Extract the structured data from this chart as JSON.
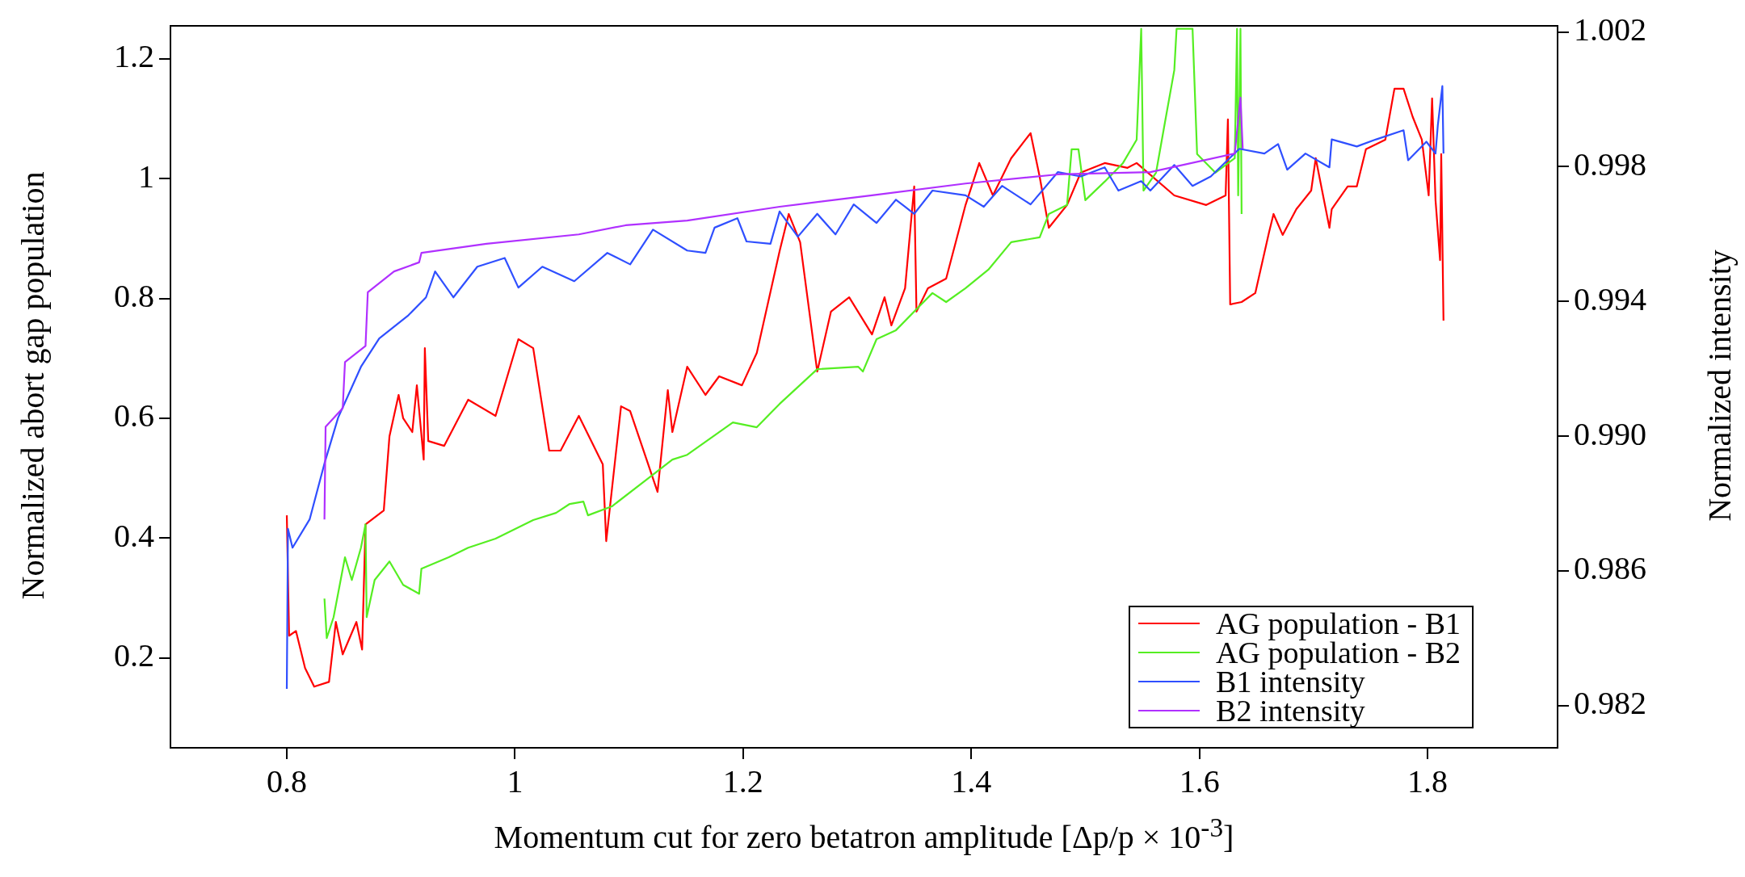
{
  "chart_data": {
    "type": "line",
    "xlabel": "Momentum cut for zero betatron amplitude [Δp/p × 10$^{-3}$]",
    "ylabel": "Normalized abort gap population",
    "y2label": "Normalized intensity",
    "xlim": [
      0.698,
      1.914
    ],
    "xticks": [
      0.8,
      1,
      1.2,
      1.4,
      1.6,
      1.8
    ],
    "ylim": [
      0.05,
      1.255
    ],
    "yticks": [
      0.2,
      0.4,
      0.6,
      0.8,
      1,
      1.2
    ],
    "y2lim": [
      0.98075,
      1.00218
    ],
    "y2ticks": [
      {
        "value": 0.982,
        "label": "0.982"
      },
      {
        "value": 0.986,
        "label": "0.986"
      },
      {
        "value": 0.99,
        "label": "0.990"
      },
      {
        "value": 0.994,
        "label": "0.994"
      },
      {
        "value": 0.998,
        "label": "0.998"
      },
      {
        "value": 1.002,
        "label": "1.002"
      }
    ],
    "legend": "bottom right",
    "series": [
      {
        "name": "AG population - B1",
        "color": "#ff0000",
        "x": [
          0.8,
          0.802,
          0.808,
          0.816,
          0.824,
          0.837,
          0.843,
          0.849,
          0.861,
          0.866,
          0.869,
          0.885,
          0.89,
          0.898,
          0.902,
          0.91,
          0.914,
          0.92,
          0.921,
          0.924,
          0.938,
          0.959,
          0.983,
          1.003,
          1.016,
          1.03,
          1.04,
          1.056,
          1.077,
          1.08,
          1.093,
          1.101,
          1.125,
          1.134,
          1.138,
          1.151,
          1.167,
          1.179,
          1.199,
          1.212,
          1.232,
          1.24,
          1.25,
          1.265,
          1.277,
          1.293,
          1.313,
          1.324,
          1.33,
          1.342,
          1.35,
          1.352,
          1.362,
          1.378,
          1.395,
          1.407,
          1.419,
          1.435,
          1.452,
          1.46,
          1.468,
          1.484,
          1.496,
          1.517,
          1.537,
          1.545,
          1.578,
          1.606,
          1.623,
          1.625,
          1.627,
          1.637,
          1.649,
          1.661,
          1.665,
          1.673,
          1.685,
          1.698,
          1.702,
          1.714,
          1.716,
          1.73,
          1.738,
          1.746,
          1.763,
          1.771,
          1.779,
          1.787,
          1.795,
          1.801,
          1.804,
          1.807,
          1.811,
          1.812,
          1.814
        ],
        "values": [
          0.438,
          0.237,
          0.245,
          0.183,
          0.152,
          0.16,
          0.26,
          0.206,
          0.26,
          0.214,
          0.423,
          0.446,
          0.57,
          0.639,
          0.6,
          0.577,
          0.655,
          0.531,
          0.717,
          0.562,
          0.554,
          0.631,
          0.604,
          0.732,
          0.717,
          0.546,
          0.546,
          0.604,
          0.523,
          0.395,
          0.62,
          0.612,
          0.477,
          0.647,
          0.577,
          0.686,
          0.639,
          0.67,
          0.655,
          0.709,
          0.879,
          0.941,
          0.894,
          0.678,
          0.778,
          0.802,
          0.74,
          0.802,
          0.755,
          0.817,
          0.987,
          0.778,
          0.817,
          0.833,
          0.956,
          1.026,
          0.972,
          1.034,
          1.076,
          1.003,
          0.918,
          0.956,
          1.01,
          1.026,
          1.018,
          1.026,
          0.972,
          0.956,
          0.972,
          1.099,
          0.79,
          0.794,
          0.809,
          0.91,
          0.941,
          0.906,
          0.949,
          0.98,
          1.034,
          0.918,
          0.949,
          0.987,
          0.987,
          1.049,
          1.065,
          1.15,
          1.15,
          1.103,
          1.065,
          0.972,
          1.134,
          0.964,
          0.864,
          1.041,
          0.763
        ]
      },
      {
        "name": "AG population - B2",
        "color": "#55ee22",
        "x": [
          0.833,
          0.835,
          0.841,
          0.851,
          0.857,
          0.865,
          0.869,
          0.87,
          0.877,
          0.89,
          0.902,
          0.916,
          0.918,
          0.942,
          0.959,
          0.983,
          1.016,
          1.036,
          1.048,
          1.06,
          1.064,
          1.085,
          1.117,
          1.138,
          1.151,
          1.191,
          1.212,
          1.232,
          1.265,
          1.301,
          1.305,
          1.317,
          1.334,
          1.354,
          1.366,
          1.378,
          1.395,
          1.415,
          1.435,
          1.46,
          1.468,
          1.484,
          1.488,
          1.494,
          1.5,
          1.517,
          1.533,
          1.545,
          1.549,
          1.551,
          1.562,
          1.57,
          1.578,
          1.58,
          1.594,
          1.598,
          1.614,
          1.631,
          1.633,
          1.634,
          1.636,
          1.637
        ],
        "values": [
          0.299,
          0.233,
          0.268,
          0.368,
          0.33,
          0.384,
          0.423,
          0.268,
          0.33,
          0.361,
          0.322,
          0.307,
          0.349,
          0.368,
          0.384,
          0.399,
          0.43,
          0.442,
          0.457,
          0.461,
          0.438,
          0.453,
          0.5,
          0.531,
          0.539,
          0.593,
          0.585,
          0.624,
          0.682,
          0.686,
          0.678,
          0.732,
          0.747,
          0.786,
          0.809,
          0.794,
          0.817,
          0.848,
          0.894,
          0.902,
          0.941,
          0.956,
          1.049,
          1.049,
          0.964,
          0.995,
          1.026,
          1.065,
          1.25,
          0.98,
          1.01,
          1.096,
          1.181,
          1.25,
          1.25,
          1.041,
          1.01,
          1.034,
          1.25,
          0.972,
          1.25,
          0.941
        ]
      },
      {
        "name": "B1 intensity",
        "color": "#2f4fff",
        "axis": "y2",
        "x": [
          0.8,
          0.801,
          0.805,
          0.82,
          0.833,
          0.845,
          0.865,
          0.881,
          0.906,
          0.922,
          0.93,
          0.946,
          0.967,
          0.991,
          1.003,
          1.024,
          1.052,
          1.081,
          1.101,
          1.121,
          1.151,
          1.167,
          1.175,
          1.195,
          1.203,
          1.224,
          1.232,
          1.248,
          1.265,
          1.281,
          1.297,
          1.317,
          1.334,
          1.35,
          1.366,
          1.395,
          1.411,
          1.427,
          1.452,
          1.476,
          1.496,
          1.517,
          1.529,
          1.549,
          1.557,
          1.578,
          1.594,
          1.61,
          1.635,
          1.657,
          1.669,
          1.677,
          1.693,
          1.714,
          1.716,
          1.738,
          1.755,
          1.779,
          1.783,
          1.799,
          1.807,
          1.809,
          1.813,
          1.814
        ],
        "values": [
          0.9825,
          0.98725,
          0.98669,
          0.98753,
          0.98919,
          0.99055,
          0.99206,
          0.9929,
          0.99357,
          0.99412,
          0.99489,
          0.99412,
          0.99503,
          0.99529,
          0.99441,
          0.99503,
          0.9946,
          0.99544,
          0.9951,
          0.99613,
          0.99551,
          0.99544,
          0.99619,
          0.99647,
          0.99578,
          0.99571,
          0.99667,
          0.99592,
          0.9966,
          0.99599,
          0.99688,
          0.99633,
          0.99702,
          0.9966,
          0.99729,
          0.99715,
          0.99681,
          0.99743,
          0.99688,
          0.99784,
          0.99771,
          0.99798,
          0.99729,
          0.99757,
          0.99729,
          0.99805,
          0.99743,
          0.99771,
          0.99853,
          0.99839,
          0.99867,
          0.99791,
          0.99839,
          0.99798,
          0.99881,
          0.9986,
          0.99881,
          0.99908,
          0.99819,
          0.99874,
          0.99839,
          0.99922,
          1.00039,
          0.99839
        ]
      },
      {
        "name": "B2 intensity",
        "color": "#b030ff",
        "axis": "y2",
        "x": [
          0.833,
          0.834,
          0.849,
          0.851,
          0.869,
          0.871,
          0.894,
          0.916,
          0.918,
          0.975,
          1.056,
          1.097,
          1.151,
          1.232,
          1.313,
          1.395,
          1.476,
          1.557,
          1.631,
          1.636,
          1.638
        ],
        "values": [
          0.98753,
          0.99028,
          0.99083,
          0.9922,
          0.99268,
          0.99427,
          0.99489,
          0.99516,
          0.99544,
          0.99571,
          0.99599,
          0.99626,
          0.9964,
          0.99681,
          0.99715,
          0.9975,
          0.99777,
          0.99784,
          0.99839,
          1.00005,
          0.99853
        ]
      }
    ]
  }
}
